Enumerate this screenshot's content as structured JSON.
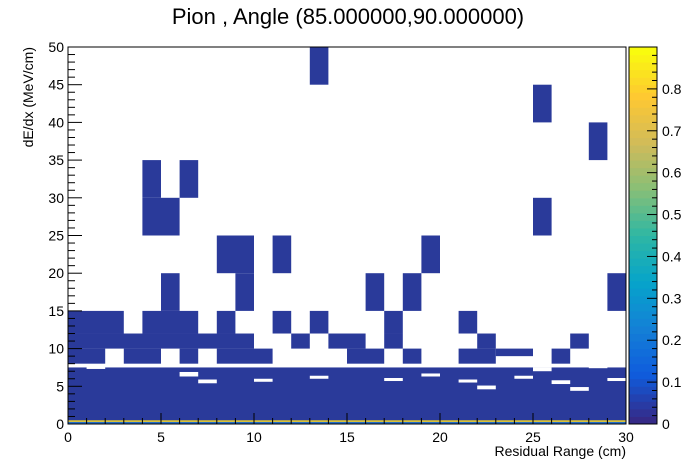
{
  "chart_data": {
    "type": "heatmap",
    "title": "Pion , Angle (85.000000,90.000000)",
    "xlabel": "Residual Range (cm)",
    "ylabel": "dE/dx (MeV/cm)",
    "xlim": [
      0,
      30
    ],
    "ylim": [
      0,
      50
    ],
    "x_ticks": [
      "0",
      "5",
      "10",
      "15",
      "20",
      "25",
      "30"
    ],
    "y_ticks": [
      "0",
      "5",
      "10",
      "15",
      "20",
      "25",
      "30",
      "35",
      "40",
      "45",
      "50"
    ],
    "colorbar": {
      "min": 0,
      "max": 0.9,
      "ticks": [
        "0",
        "0.1",
        "0.2",
        "0.3",
        "0.4",
        "0.5",
        "0.6",
        "0.7",
        "0.8"
      ]
    },
    "grid": false,
    "colors": {
      "cell": "#2a3a9a",
      "lowband": "#1f6fd0",
      "band_top": "#d8c23a",
      "frame": "#000000"
    },
    "cells": [
      {
        "x": 13,
        "y": 45,
        "w": 1,
        "h": 5
      },
      {
        "x": 25,
        "y": 40,
        "w": 1,
        "h": 5
      },
      {
        "x": 28,
        "y": 35,
        "w": 1,
        "h": 5
      },
      {
        "x": 4,
        "y": 30,
        "w": 1,
        "h": 5
      },
      {
        "x": 6,
        "y": 30,
        "w": 1,
        "h": 5
      },
      {
        "x": 4,
        "y": 25,
        "w": 2,
        "h": 5
      },
      {
        "x": 25,
        "y": 25,
        "w": 1,
        "h": 5
      },
      {
        "x": 8,
        "y": 20,
        "w": 2,
        "h": 5
      },
      {
        "x": 11,
        "y": 20,
        "w": 1,
        "h": 5
      },
      {
        "x": 19,
        "y": 20,
        "w": 1,
        "h": 5
      },
      {
        "x": 5,
        "y": 15,
        "w": 1,
        "h": 5
      },
      {
        "x": 9,
        "y": 15,
        "w": 1,
        "h": 5
      },
      {
        "x": 16,
        "y": 15,
        "w": 1,
        "h": 5
      },
      {
        "x": 18,
        "y": 15,
        "w": 1,
        "h": 5
      },
      {
        "x": 29,
        "y": 15,
        "w": 1,
        "h": 5
      },
      {
        "x": 0,
        "y": 12,
        "w": 3,
        "h": 3
      },
      {
        "x": 4,
        "y": 12,
        "w": 3,
        "h": 3
      },
      {
        "x": 8,
        "y": 12,
        "w": 1,
        "h": 3
      },
      {
        "x": 11,
        "y": 12,
        "w": 1,
        "h": 3
      },
      {
        "x": 13,
        "y": 12,
        "w": 1,
        "h": 3
      },
      {
        "x": 17,
        "y": 12,
        "w": 1,
        "h": 3
      },
      {
        "x": 21,
        "y": 12,
        "w": 1,
        "h": 3
      },
      {
        "x": 0,
        "y": 10,
        "w": 10,
        "h": 2
      },
      {
        "x": 12,
        "y": 10,
        "w": 1,
        "h": 2
      },
      {
        "x": 14,
        "y": 10,
        "w": 2,
        "h": 2
      },
      {
        "x": 17,
        "y": 10,
        "w": 1,
        "h": 2
      },
      {
        "x": 22,
        "y": 10,
        "w": 1,
        "h": 2
      },
      {
        "x": 27,
        "y": 10,
        "w": 1,
        "h": 2
      },
      {
        "x": 0,
        "y": 8,
        "w": 2,
        "h": 2
      },
      {
        "x": 3,
        "y": 8,
        "w": 2,
        "h": 2
      },
      {
        "x": 6,
        "y": 8,
        "w": 1,
        "h": 2
      },
      {
        "x": 8,
        "y": 8,
        "w": 3,
        "h": 2
      },
      {
        "x": 15,
        "y": 8,
        "w": 2,
        "h": 2
      },
      {
        "x": 18,
        "y": 8,
        "w": 1,
        "h": 2
      },
      {
        "x": 21,
        "y": 8,
        "w": 2,
        "h": 2
      },
      {
        "x": 23,
        "y": 9,
        "w": 2,
        "h": 1
      },
      {
        "x": 26,
        "y": 8,
        "w": 1,
        "h": 2
      },
      {
        "x": 0,
        "y": 6.5,
        "w": 30,
        "h": 1
      },
      {
        "x": 0,
        "y": 0,
        "w": 30,
        "h": 7
      }
    ],
    "holes": [
      {
        "x": 1,
        "y": 7.3,
        "w": 1,
        "h": 0.4
      },
      {
        "x": 6,
        "y": 6.3,
        "w": 1,
        "h": 0.6
      },
      {
        "x": 7,
        "y": 5.4,
        "w": 1,
        "h": 0.5
      },
      {
        "x": 10,
        "y": 5.6,
        "w": 1,
        "h": 0.4
      },
      {
        "x": 13,
        "y": 6.0,
        "w": 1,
        "h": 0.4
      },
      {
        "x": 17,
        "y": 5.7,
        "w": 1,
        "h": 0.4
      },
      {
        "x": 19,
        "y": 6.3,
        "w": 1,
        "h": 0.4
      },
      {
        "x": 21,
        "y": 5.5,
        "w": 1,
        "h": 0.4
      },
      {
        "x": 22,
        "y": 4.6,
        "w": 1,
        "h": 0.5
      },
      {
        "x": 24,
        "y": 6.0,
        "w": 1,
        "h": 0.4
      },
      {
        "x": 25,
        "y": 7.0,
        "w": 1,
        "h": 0.5
      },
      {
        "x": 26,
        "y": 5.3,
        "w": 1,
        "h": 0.5
      },
      {
        "x": 27,
        "y": 4.4,
        "w": 1,
        "h": 0.5
      },
      {
        "x": 28,
        "y": 7.4,
        "w": 1,
        "h": 0.5
      },
      {
        "x": 29,
        "y": 5.7,
        "w": 1,
        "h": 0.4
      }
    ]
  }
}
